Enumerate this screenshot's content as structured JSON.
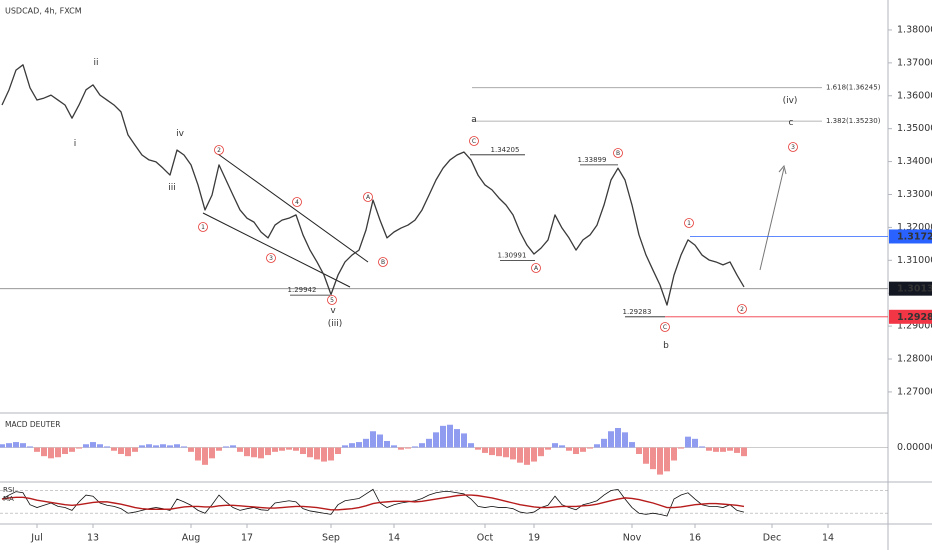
{
  "chart_data": [
    {
      "type": "line",
      "title": "USDCAD, 4h, FXCM",
      "categories": [
        null,
        null,
        null,
        null,
        null,
        "Jul",
        null,
        null,
        null,
        null,
        null,
        null,
        null,
        "13",
        null,
        null,
        null,
        null,
        null,
        null,
        null,
        null,
        null,
        null,
        null,
        null,
        null,
        "Aug",
        null,
        null,
        null,
        null,
        null,
        null,
        null,
        "17",
        null,
        null,
        null,
        null,
        null,
        null,
        null,
        null,
        null,
        null,
        null,
        "Sep",
        null,
        null,
        null,
        null,
        null,
        null,
        null,
        null,
        "14",
        null,
        null,
        null,
        null,
        null,
        null,
        null,
        null,
        null,
        null,
        null,
        null,
        "Oct",
        null,
        null,
        null,
        null,
        null,
        null,
        "19",
        null,
        null,
        null,
        null,
        null,
        null,
        null,
        null,
        null,
        null,
        null,
        null,
        null,
        "Nov",
        null,
        null,
        null,
        null,
        null,
        null,
        null,
        null,
        "16",
        null,
        null,
        null,
        null,
        null,
        null,
        null,
        null,
        null,
        null,
        "Dec",
        null,
        null,
        null,
        null,
        null,
        null,
        null,
        "14"
      ],
      "values": [
        1.3572,
        1.3618,
        1.3678,
        1.3694,
        1.3624,
        1.3587,
        1.3593,
        1.3602,
        1.3587,
        1.3572,
        1.3532,
        1.3572,
        1.3618,
        1.3633,
        1.3602,
        1.3587,
        1.3572,
        1.3551,
        1.3481,
        1.345,
        1.342,
        1.3405,
        1.3399,
        1.338,
        1.3359,
        1.3435,
        1.342,
        1.339,
        1.3329,
        1.3253,
        1.3298,
        1.339,
        1.3344,
        1.3298,
        1.3253,
        1.3228,
        1.3216,
        1.3186,
        1.3168,
        1.3207,
        1.3222,
        1.3228,
        1.3238,
        1.3177,
        1.3131,
        1.3095,
        1.3055,
        1.2996,
        1.3055,
        1.3095,
        1.3116,
        1.3131,
        1.3192,
        1.3283,
        1.3222,
        1.3168,
        1.3186,
        1.3198,
        1.3207,
        1.3222,
        1.3253,
        1.3298,
        1.3344,
        1.338,
        1.3405,
        1.342,
        1.3429,
        1.3405,
        1.3359,
        1.3329,
        1.3314,
        1.3289,
        1.3268,
        1.3238,
        1.3186,
        1.3146,
        1.3119,
        1.3137,
        1.3162,
        1.3238,
        1.3198,
        1.3168,
        1.3131,
        1.3162,
        1.3177,
        1.3207,
        1.3268,
        1.3344,
        1.338,
        1.3344,
        1.3268,
        1.3177,
        1.3116,
        1.307,
        1.3025,
        1.2964,
        1.3055,
        1.3116,
        1.3162,
        1.3146,
        1.3116,
        1.3101,
        1.3095,
        1.3086,
        1.3095,
        1.3055,
        1.3019,
        null,
        null,
        null,
        null,
        null,
        null,
        null,
        null,
        null,
        null,
        null,
        null
      ],
      "color": "#3a3a3a",
      "ylim": [
        1.2639,
        1.3891
      ],
      "yticks": [
        {
          "value": 1.38,
          "label": "1.38000"
        },
        {
          "value": 1.37,
          "label": "1.37000"
        },
        {
          "value": 1.36,
          "label": "1.36000"
        },
        {
          "value": 1.35,
          "label": "1.35000"
        },
        {
          "value": 1.34,
          "label": "1.34000"
        },
        {
          "value": 1.33,
          "label": "1.33000"
        },
        {
          "value": 1.32,
          "label": "1.32000"
        },
        {
          "value": 1.31,
          "label": "1.31000"
        },
        {
          "value": 1.3,
          "label": "1.30000"
        },
        {
          "value": 1.29,
          "label": "1.29000"
        },
        {
          "value": 1.28,
          "label": "1.28000"
        },
        {
          "value": 1.27,
          "label": "1.27000"
        }
      ],
      "price_lines": [
        {
          "value": 1.31724,
          "color": "#2962ff"
        },
        {
          "value": 1.30138,
          "color": "#131722"
        },
        {
          "value": 1.29283,
          "color": "#f23645"
        }
      ],
      "fib_levels": [
        {
          "label": "1.618(1.36245)",
          "value": 1.36245
        },
        {
          "label": "1.382(1.35230)",
          "value": 1.3523
        }
      ],
      "price_notes": [
        1.29942,
        1.34205,
        1.30991,
        1.33899,
        1.29283
      ],
      "wave_labels": [
        {
          "text": "ii",
          "color": "#444444"
        },
        {
          "text": "i",
          "color": "#444444"
        },
        {
          "text": "iv",
          "color": "#8b2d2d"
        },
        {
          "text": "iii",
          "color": "#8b2d2d"
        },
        {
          "text": "v",
          "color": "#8b2d2d"
        },
        {
          "text": "(iii)",
          "color": "#c07a1a"
        },
        {
          "text": "2",
          "color": "#e53935",
          "circled": true
        },
        {
          "text": "4",
          "color": "#e53935",
          "circled": true
        },
        {
          "text": "1",
          "color": "#e53935",
          "circled": true
        },
        {
          "text": "3",
          "color": "#e53935",
          "circled": true
        },
        {
          "text": "5",
          "color": "#e53935",
          "circled": true
        },
        {
          "text": "A",
          "color": "#e53935",
          "circled": true
        },
        {
          "text": "B",
          "color": "#e53935",
          "circled": true
        },
        {
          "text": "C",
          "color": "#e53935",
          "circled": true
        },
        {
          "text": "a",
          "color": "#2a3ad6"
        },
        {
          "text": "A",
          "color": "#e53935",
          "circled": true
        },
        {
          "text": "B",
          "color": "#e53935",
          "circled": true
        },
        {
          "text": "C",
          "color": "#e53935",
          "circled": true
        },
        {
          "text": "b",
          "color": "#2a3ad6"
        },
        {
          "text": "1",
          "color": "#e53935",
          "circled": true
        },
        {
          "text": "2",
          "color": "#e53935",
          "circled": true
        },
        {
          "text": "3",
          "color": "#e53935",
          "circled": true
        },
        {
          "text": "c",
          "color": "#2a3ad6"
        },
        {
          "text": "(iv)",
          "color": "#c07a1a"
        }
      ]
    },
    {
      "type": "bar",
      "title": "MACD DEUTER",
      "values": [
        0.0003,
        0.0004,
        0.0005,
        0.0004,
        0.0001,
        -0.0004,
        -0.0008,
        -0.001,
        -0.0009,
        -0.0006,
        -0.0004,
        -0.0001,
        0.0003,
        0.0005,
        0.0003,
        0.0001,
        -0.0003,
        -0.0006,
        -0.0008,
        -0.0004,
        0.0002,
        0.0003,
        0.0002,
        0.0003,
        0.0002,
        0.0003,
        0.0001,
        -0.0004,
        -0.0012,
        -0.0016,
        -0.001,
        -0.0003,
        0.0001,
        0.0002,
        -0.0004,
        -0.0008,
        -0.0009,
        -0.001,
        -0.0007,
        -0.0004,
        -0.0003,
        -0.0002,
        -0.0003,
        -0.0006,
        -0.0009,
        -0.0011,
        -0.0013,
        -0.0012,
        -0.0006,
        0.0002,
        0.0004,
        0.0005,
        0.0008,
        0.0015,
        0.0012,
        0.0006,
        0.0002,
        -0.0002,
        -0.0001,
        0.0001,
        0.0004,
        0.0008,
        0.0014,
        0.002,
        0.0021,
        0.0017,
        0.0013,
        0.0004,
        -0.0002,
        -0.0005,
        -0.0007,
        -0.0008,
        -0.0009,
        -0.0011,
        -0.0014,
        -0.0016,
        -0.0013,
        -0.0008,
        -0.0002,
        0.0004,
        0.0002,
        -0.0003,
        -0.0006,
        -0.0004,
        -0.0001,
        0.0003,
        0.0008,
        0.0015,
        0.0018,
        0.0014,
        0.0005,
        -0.0006,
        -0.0015,
        -0.002,
        -0.0025,
        -0.0022,
        -0.0012,
        -0.0001,
        0.001,
        0.0008,
        0.0001,
        -0.0003,
        -0.0004,
        -0.0004,
        -0.0003,
        -0.0005,
        -0.0008,
        null,
        null,
        null,
        null,
        null,
        null,
        null,
        null,
        null,
        null,
        null,
        null
      ],
      "positive_color": "#8f9cf0",
      "negative_color": "#f08f8f",
      "ylim": [
        -0.003,
        0.003
      ],
      "yticks": [
        {
          "value": 0,
          "label": "0.00000"
        }
      ]
    },
    {
      "type": "line",
      "ylim": [
        11,
        85
      ],
      "levels": [
        70,
        30
      ],
      "series": [
        {
          "name": "RSI",
          "color": "#111111",
          "values": [
            55,
            62,
            68,
            66,
            45,
            40,
            44,
            48,
            42,
            40,
            35,
            50,
            62,
            60,
            48,
            44,
            42,
            38,
            30,
            32,
            35,
            38,
            40,
            38,
            35,
            55,
            50,
            44,
            35,
            30,
            45,
            62,
            50,
            40,
            35,
            38,
            40,
            36,
            35,
            48,
            50,
            52,
            50,
            38,
            34,
            32,
            30,
            28,
            45,
            52,
            54,
            56,
            64,
            72,
            48,
            40,
            45,
            48,
            50,
            52,
            56,
            62,
            66,
            68,
            68,
            66,
            64,
            55,
            42,
            40,
            42,
            40,
            40,
            38,
            32,
            30,
            32,
            40,
            44,
            60,
            45,
            40,
            36,
            45,
            48,
            52,
            62,
            70,
            72,
            55,
            40,
            30,
            28,
            30,
            28,
            25,
            55,
            62,
            66,
            55,
            45,
            42,
            42,
            40,
            45,
            35,
            32,
            null,
            null,
            null,
            null,
            null,
            null,
            null,
            null,
            null,
            null,
            null,
            null
          ]
        },
        {
          "name": "MA",
          "color": "#b71c1c",
          "values": [
            55,
            57,
            58,
            58,
            56,
            53,
            51,
            49,
            47,
            45,
            44,
            45,
            47,
            49,
            50,
            50,
            48,
            46,
            43,
            40,
            38,
            37,
            37,
            37,
            37,
            39,
            41,
            42,
            42,
            41,
            41,
            43,
            44,
            44,
            43,
            42,
            41,
            40,
            39,
            39,
            40,
            41,
            42,
            42,
            41,
            40,
            38,
            36,
            36,
            37,
            38,
            40,
            43,
            47,
            49,
            50,
            51,
            51,
            51,
            50,
            51,
            53,
            55,
            57,
            59,
            61,
            62,
            62,
            61,
            59,
            57,
            54,
            51,
            48,
            45,
            43,
            41,
            40,
            40,
            41,
            42,
            42,
            42,
            43,
            44,
            46,
            49,
            52,
            55,
            57,
            56,
            54,
            51,
            48,
            44,
            40,
            40,
            41,
            43,
            45,
            46,
            47,
            47,
            46,
            45,
            44,
            42,
            null,
            null,
            null,
            null,
            null,
            null,
            null,
            null,
            null,
            null,
            null,
            null
          ]
        }
      ]
    }
  ]
}
